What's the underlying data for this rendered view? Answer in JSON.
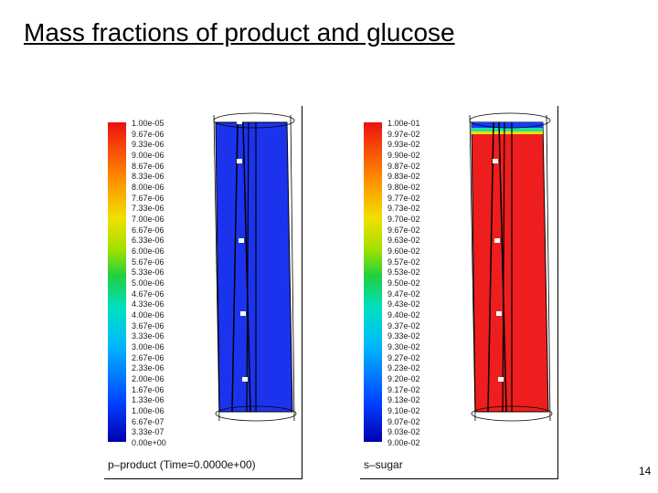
{
  "title": "Mass fractions of product and glucose",
  "page_number": "14",
  "panels": [
    {
      "caption": "p–product  (Time=0.0000e+00)",
      "fill_color": "#1c33ee",
      "ticks": [
        "1.00e-05",
        "9.67e-06",
        "9.33e-06",
        "9.00e-06",
        "8.67e-06",
        "8.33e-06",
        "8.00e-06",
        "7.67e-06",
        "7.33e-06",
        "7.00e-06",
        "6.67e-06",
        "6.33e-06",
        "6.00e-06",
        "5.67e-06",
        "5.33e-06",
        "5.00e-06",
        "4.67e-06",
        "4.33e-06",
        "4.00e-06",
        "3.67e-06",
        "3.33e-06",
        "3.00e-06",
        "2.67e-06",
        "2.33e-06",
        "2.00e-06",
        "1.67e-06",
        "1.33e-06",
        "1.00e-06",
        "6.67e-07",
        "3.33e-07",
        "0.00e+00"
      ]
    },
    {
      "caption": "s–sugar",
      "fill_color": "#ee1e1e",
      "ticks": [
        "1.00e-01",
        "9.97e-02",
        "9.93e-02",
        "9.90e-02",
        "9.87e-02",
        "9.83e-02",
        "9.80e-02",
        "9.77e-02",
        "9.73e-02",
        "9.70e-02",
        "9.67e-02",
        "9.63e-02",
        "9.60e-02",
        "9.57e-02",
        "9.53e-02",
        "9.50e-02",
        "9.47e-02",
        "9.43e-02",
        "9.40e-02",
        "9.37e-02",
        "9.33e-02",
        "9.30e-02",
        "9.27e-02",
        "9.23e-02",
        "9.20e-02",
        "9.17e-02",
        "9.13e-02",
        "9.10e-02",
        "9.07e-02",
        "9.03e-02",
        "9.00e-02"
      ]
    }
  ]
}
